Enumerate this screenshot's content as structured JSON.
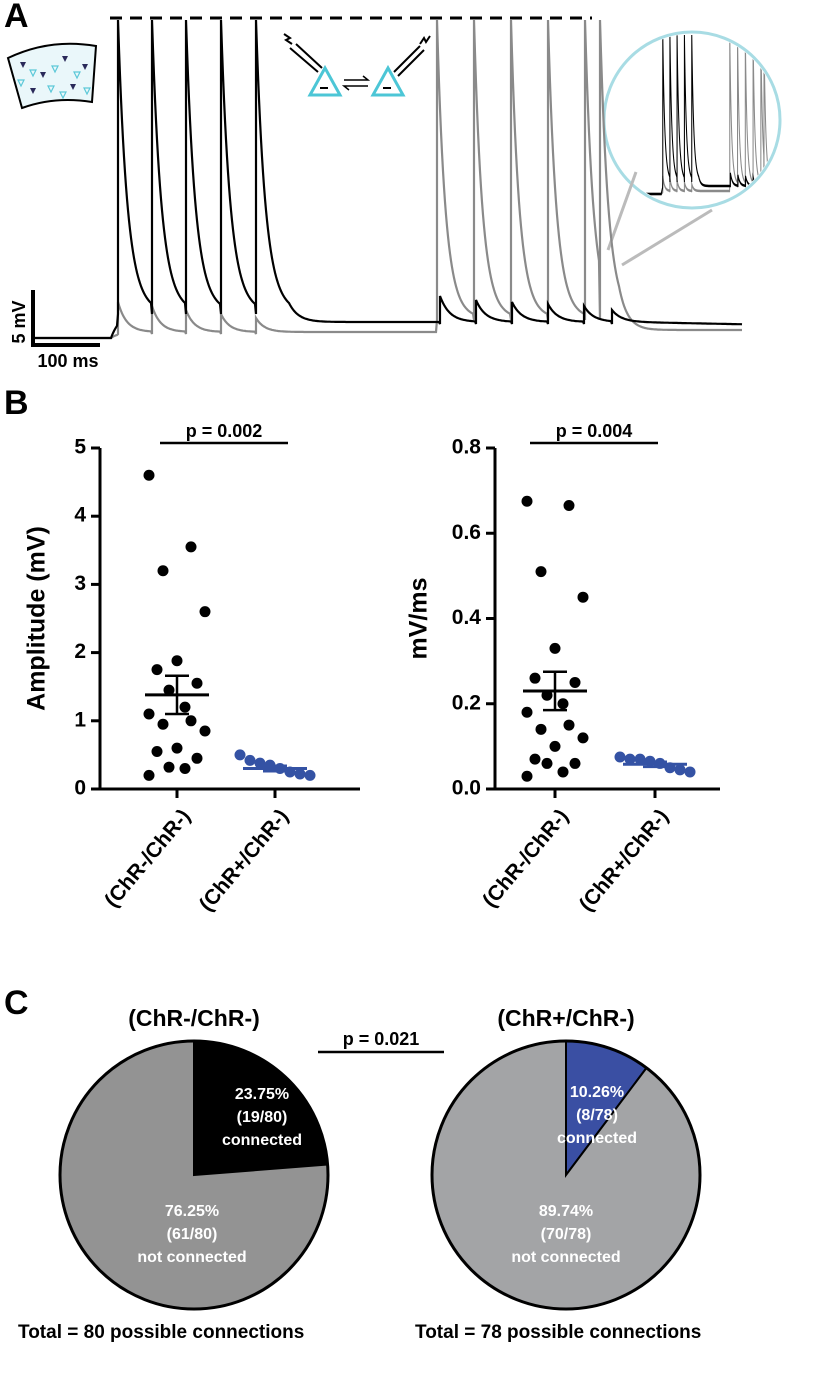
{
  "chart_data": [
    {
      "type": "trace",
      "panel": "A",
      "scalebar_y_label": "5 mV",
      "scalebar_x_label": "100 ms"
    },
    {
      "type": "dot",
      "panel": "B",
      "ylabel": "Amplitude (mV)",
      "annotation": "p = 0.002",
      "categories": [
        "(ChR-/ChR-)",
        "(ChR+/ChR-)"
      ],
      "colors": [
        "#000000",
        "#3452a4"
      ],
      "points": [
        [
          4.6,
          3.55,
          3.2,
          2.6,
          1.88,
          1.75,
          1.55,
          1.45,
          1.2,
          1.1,
          1.0,
          0.95,
          0.85,
          0.6,
          0.55,
          0.45,
          0.32,
          0.3,
          0.2
        ],
        [
          0.5,
          0.42,
          0.38,
          0.35,
          0.3,
          0.25,
          0.22,
          0.2
        ]
      ],
      "means": [
        1.38,
        0.3
      ],
      "sems": [
        0.28,
        0.04
      ],
      "ylim": [
        0,
        5
      ],
      "yticks": [
        0,
        1,
        2,
        3,
        4,
        5
      ]
    },
    {
      "type": "dot",
      "ylabel": "mV/ms",
      "annotation": "p = 0.004",
      "categories": [
        "(ChR-/ChR-)",
        "(ChR+/ChR-)"
      ],
      "colors": [
        "#000000",
        "#3452a4"
      ],
      "points": [
        [
          0.675,
          0.665,
          0.51,
          0.45,
          0.33,
          0.26,
          0.25,
          0.22,
          0.2,
          0.18,
          0.15,
          0.14,
          0.12,
          0.1,
          0.07,
          0.06,
          0.06,
          0.04,
          0.03
        ],
        [
          0.075,
          0.07,
          0.07,
          0.065,
          0.06,
          0.05,
          0.045,
          0.04
        ]
      ],
      "means": [
        0.23,
        0.058
      ],
      "sems": [
        0.045,
        0.006
      ],
      "ylim": [
        0,
        0.8
      ],
      "yticks": [
        {
          "value": 0,
          "label": "0.0"
        },
        0.2,
        0.4,
        0.6,
        0.8
      ]
    },
    {
      "type": "pie",
      "panel": "C",
      "title": "(ChR-/ChR-)",
      "annotation": "p = 0.021",
      "categories": [
        "connected",
        "not connected"
      ],
      "values": [
        23.75,
        76.25
      ],
      "value_labels": [
        "23.75%",
        "76.25%"
      ],
      "counts": [
        "(19/80)",
        "(61/80)"
      ],
      "colors": [
        "#000000",
        "#939393"
      ],
      "footer": "Total = 80 possible connections"
    },
    {
      "type": "pie",
      "title": "(ChR+/ChR-)",
      "categories": [
        "connected",
        "not connected"
      ],
      "values": [
        10.26,
        89.74
      ],
      "value_labels": [
        "10.26%",
        "89.74%"
      ],
      "counts": [
        "(8/78)",
        "(70/78)"
      ],
      "colors": [
        "#3a4fa3",
        "#a3a4a6"
      ],
      "footer": "Total = 78 possible connections"
    }
  ]
}
